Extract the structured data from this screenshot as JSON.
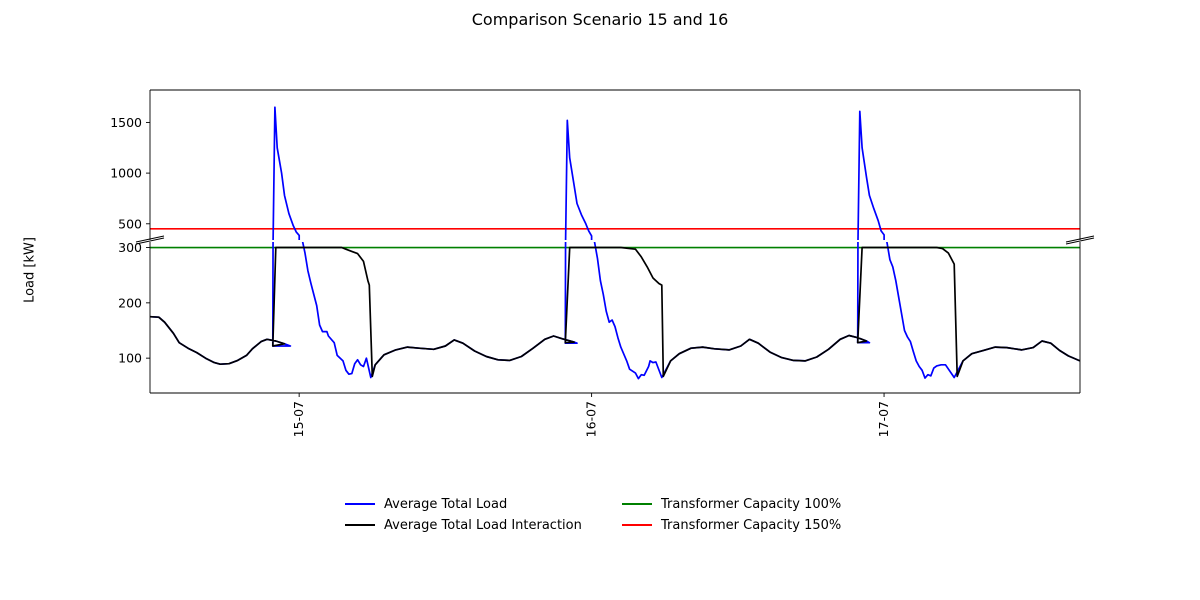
{
  "chart_data": {
    "type": "line",
    "title": "Comparison Scenario 15 and 16",
    "ylabel": "Load [kW]",
    "xlabel": "",
    "broken_y_axis": true,
    "ylim_upper": [
      340,
      1820
    ],
    "ylim_lower": [
      37,
      310
    ],
    "yticks_upper": [
      500,
      1000,
      1500
    ],
    "yticks_lower": [
      100,
      200,
      300
    ],
    "x_range": [
      -0.51,
      2.67
    ],
    "xticks": [
      {
        "x": 0,
        "label": "15-07"
      },
      {
        "x": 1,
        "label": "16-07"
      },
      {
        "x": 2,
        "label": "17-07"
      }
    ],
    "legend_position": "below chart, two columns",
    "hlines": [
      {
        "name": "Transformer Capacity 100%",
        "y": 300,
        "color": "#008000"
      },
      {
        "name": "Transformer Capacity 150%",
        "y": 450,
        "color": "#ff0000"
      }
    ],
    "series": [
      {
        "name": "Average Total Load",
        "color": "#0000ff",
        "points": [
          [
            -0.51,
            175
          ],
          [
            -0.48,
            174
          ],
          [
            -0.46,
            165
          ],
          [
            -0.43,
            145
          ],
          [
            -0.41,
            128
          ],
          [
            -0.38,
            118
          ],
          [
            -0.35,
            110
          ],
          [
            -0.32,
            100
          ],
          [
            -0.29,
            92
          ],
          [
            -0.27,
            89
          ],
          [
            -0.24,
            90
          ],
          [
            -0.21,
            96
          ],
          [
            -0.18,
            105
          ],
          [
            -0.16,
            117
          ],
          [
            -0.13,
            130
          ],
          [
            -0.11,
            134
          ],
          [
            -0.08,
            131
          ],
          [
            -0.05,
            126
          ],
          [
            -0.03,
            122
          ],
          [
            -0.09,
            122
          ],
          [
            -0.083,
            1650
          ],
          [
            -0.075,
            1250
          ],
          [
            -0.06,
            1000
          ],
          [
            -0.05,
            780
          ],
          [
            -0.035,
            600
          ],
          [
            -0.02,
            480
          ],
          [
            -0.01,
            420
          ],
          [
            0.0,
            385
          ],
          [
            0.0,
            340
          ],
          [
            0.02,
            290
          ],
          [
            0.03,
            258
          ],
          [
            0.04,
            236
          ],
          [
            0.05,
            215
          ],
          [
            0.06,
            195
          ],
          [
            0.07,
            160
          ],
          [
            0.08,
            148
          ],
          [
            0.095,
            148
          ],
          [
            0.1,
            140
          ],
          [
            0.12,
            128
          ],
          [
            0.13,
            105
          ],
          [
            0.15,
            95
          ],
          [
            0.16,
            78
          ],
          [
            0.17,
            71
          ],
          [
            0.18,
            72
          ],
          [
            0.19,
            90
          ],
          [
            0.2,
            97
          ],
          [
            0.21,
            88
          ],
          [
            0.22,
            85
          ],
          [
            0.23,
            100
          ],
          [
            0.245,
            65
          ],
          [
            0.26,
            88
          ],
          [
            0.29,
            106
          ],
          [
            0.33,
            115
          ],
          [
            0.37,
            120
          ],
          [
            0.41,
            118
          ],
          [
            0.46,
            116
          ],
          [
            0.5,
            122
          ],
          [
            0.53,
            133
          ],
          [
            0.56,
            127
          ],
          [
            0.6,
            113
          ],
          [
            0.64,
            103
          ],
          [
            0.68,
            97
          ],
          [
            0.72,
            96
          ],
          [
            0.76,
            103
          ],
          [
            0.8,
            118
          ],
          [
            0.84,
            134
          ],
          [
            0.87,
            140
          ],
          [
            0.9,
            135
          ],
          [
            0.94,
            129
          ],
          [
            0.95,
            127
          ],
          [
            0.91,
            127
          ],
          [
            0.917,
            1520
          ],
          [
            0.925,
            1150
          ],
          [
            0.94,
            880
          ],
          [
            0.95,
            700
          ],
          [
            0.965,
            590
          ],
          [
            0.98,
            500
          ],
          [
            0.99,
            430
          ],
          [
            1.0,
            380
          ],
          [
            1.0,
            340
          ],
          [
            1.02,
            280
          ],
          [
            1.03,
            240
          ],
          [
            1.04,
            215
          ],
          [
            1.05,
            185
          ],
          [
            1.06,
            165
          ],
          [
            1.07,
            169
          ],
          [
            1.08,
            157
          ],
          [
            1.09,
            137
          ],
          [
            1.1,
            120
          ],
          [
            1.12,
            95
          ],
          [
            1.13,
            80
          ],
          [
            1.15,
            73
          ],
          [
            1.16,
            63
          ],
          [
            1.17,
            70
          ],
          [
            1.18,
            69
          ],
          [
            1.195,
            85
          ],
          [
            1.2,
            95
          ],
          [
            1.21,
            92
          ],
          [
            1.22,
            93
          ],
          [
            1.24,
            65
          ],
          [
            1.27,
            95
          ],
          [
            1.3,
            108
          ],
          [
            1.34,
            118
          ],
          [
            1.38,
            120
          ],
          [
            1.42,
            117
          ],
          [
            1.47,
            115
          ],
          [
            1.51,
            122
          ],
          [
            1.54,
            134
          ],
          [
            1.57,
            127
          ],
          [
            1.61,
            111
          ],
          [
            1.65,
            101
          ],
          [
            1.69,
            96
          ],
          [
            1.73,
            95
          ],
          [
            1.77,
            102
          ],
          [
            1.81,
            116
          ],
          [
            1.85,
            134
          ],
          [
            1.88,
            141
          ],
          [
            1.91,
            137
          ],
          [
            1.94,
            131
          ],
          [
            1.95,
            128
          ],
          [
            1.91,
            128
          ],
          [
            1.917,
            1610
          ],
          [
            1.925,
            1250
          ],
          [
            1.94,
            960
          ],
          [
            1.95,
            780
          ],
          [
            1.965,
            650
          ],
          [
            1.98,
            530
          ],
          [
            1.99,
            430
          ],
          [
            2.0,
            390
          ],
          [
            2.0,
            340
          ],
          [
            2.02,
            278
          ],
          [
            2.03,
            265
          ],
          [
            2.04,
            240
          ],
          [
            2.05,
            210
          ],
          [
            2.06,
            180
          ],
          [
            2.07,
            150
          ],
          [
            2.08,
            138
          ],
          [
            2.09,
            130
          ],
          [
            2.1,
            112
          ],
          [
            2.11,
            95
          ],
          [
            2.12,
            85
          ],
          [
            2.13,
            78
          ],
          [
            2.14,
            64
          ],
          [
            2.15,
            70
          ],
          [
            2.16,
            68
          ],
          [
            2.17,
            82
          ],
          [
            2.18,
            86
          ],
          [
            2.195,
            88
          ],
          [
            2.21,
            88
          ],
          [
            2.24,
            65
          ],
          [
            2.27,
            95
          ],
          [
            2.3,
            108
          ],
          [
            2.34,
            114
          ],
          [
            2.38,
            120
          ],
          [
            2.42,
            119
          ],
          [
            2.47,
            115
          ],
          [
            2.51,
            119
          ],
          [
            2.54,
            131
          ],
          [
            2.57,
            127
          ],
          [
            2.6,
            114
          ],
          [
            2.63,
            104
          ],
          [
            2.67,
            95
          ]
        ]
      },
      {
        "name": "Average Total Load Interaction",
        "color": "#000000",
        "points": [
          [
            -0.51,
            175
          ],
          [
            -0.48,
            174
          ],
          [
            -0.46,
            165
          ],
          [
            -0.43,
            145
          ],
          [
            -0.41,
            128
          ],
          [
            -0.38,
            118
          ],
          [
            -0.35,
            110
          ],
          [
            -0.32,
            100
          ],
          [
            -0.29,
            92
          ],
          [
            -0.27,
            89
          ],
          [
            -0.24,
            90
          ],
          [
            -0.21,
            96
          ],
          [
            -0.18,
            105
          ],
          [
            -0.16,
            117
          ],
          [
            -0.13,
            130
          ],
          [
            -0.11,
            134
          ],
          [
            -0.08,
            131
          ],
          [
            -0.05,
            126
          ],
          [
            -0.09,
            122
          ],
          [
            -0.08,
            300
          ],
          [
            0.05,
            300
          ],
          [
            0.1,
            300
          ],
          [
            0.145,
            300
          ],
          [
            0.16,
            297
          ],
          [
            0.18,
            293
          ],
          [
            0.2,
            289
          ],
          [
            0.22,
            275
          ],
          [
            0.235,
            240
          ],
          [
            0.24,
            232
          ],
          [
            0.25,
            67
          ],
          [
            0.26,
            88
          ],
          [
            0.29,
            106
          ],
          [
            0.33,
            115
          ],
          [
            0.37,
            120
          ],
          [
            0.41,
            118
          ],
          [
            0.46,
            116
          ],
          [
            0.5,
            122
          ],
          [
            0.53,
            133
          ],
          [
            0.56,
            127
          ],
          [
            0.6,
            113
          ],
          [
            0.64,
            103
          ],
          [
            0.68,
            97
          ],
          [
            0.72,
            96
          ],
          [
            0.76,
            103
          ],
          [
            0.8,
            118
          ],
          [
            0.84,
            134
          ],
          [
            0.87,
            140
          ],
          [
            0.9,
            135
          ],
          [
            0.94,
            129
          ],
          [
            0.91,
            128
          ],
          [
            0.925,
            300
          ],
          [
            1.0,
            300
          ],
          [
            1.1,
            300
          ],
          [
            1.15,
            297
          ],
          [
            1.17,
            283
          ],
          [
            1.19,
            265
          ],
          [
            1.21,
            245
          ],
          [
            1.23,
            235
          ],
          [
            1.24,
            232
          ],
          [
            1.245,
            67
          ],
          [
            1.27,
            95
          ],
          [
            1.3,
            108
          ],
          [
            1.34,
            118
          ],
          [
            1.38,
            120
          ],
          [
            1.42,
            117
          ],
          [
            1.47,
            115
          ],
          [
            1.51,
            122
          ],
          [
            1.54,
            134
          ],
          [
            1.57,
            127
          ],
          [
            1.61,
            111
          ],
          [
            1.65,
            101
          ],
          [
            1.69,
            96
          ],
          [
            1.73,
            95
          ],
          [
            1.77,
            102
          ],
          [
            1.81,
            116
          ],
          [
            1.85,
            134
          ],
          [
            1.88,
            141
          ],
          [
            1.91,
            137
          ],
          [
            1.94,
            131
          ],
          [
            1.91,
            128
          ],
          [
            1.925,
            300
          ],
          [
            2.0,
            300
          ],
          [
            2.18,
            300
          ],
          [
            2.2,
            298
          ],
          [
            2.22,
            290
          ],
          [
            2.24,
            270
          ],
          [
            2.25,
            67
          ],
          [
            2.27,
            95
          ],
          [
            2.3,
            108
          ],
          [
            2.34,
            114
          ],
          [
            2.38,
            120
          ],
          [
            2.42,
            119
          ],
          [
            2.47,
            115
          ],
          [
            2.51,
            119
          ],
          [
            2.54,
            131
          ],
          [
            2.57,
            127
          ],
          [
            2.6,
            114
          ],
          [
            2.63,
            104
          ],
          [
            2.67,
            95
          ]
        ]
      }
    ]
  },
  "legend": {
    "items": [
      {
        "label": "Average Total Load",
        "color": "#0000ff"
      },
      {
        "label": "Transformer Capacity 100%",
        "color": "#008000"
      },
      {
        "label": "Average Total Load Interaction",
        "color": "#000000"
      },
      {
        "label": "Transformer Capacity 150%",
        "color": "#ff0000"
      }
    ]
  }
}
